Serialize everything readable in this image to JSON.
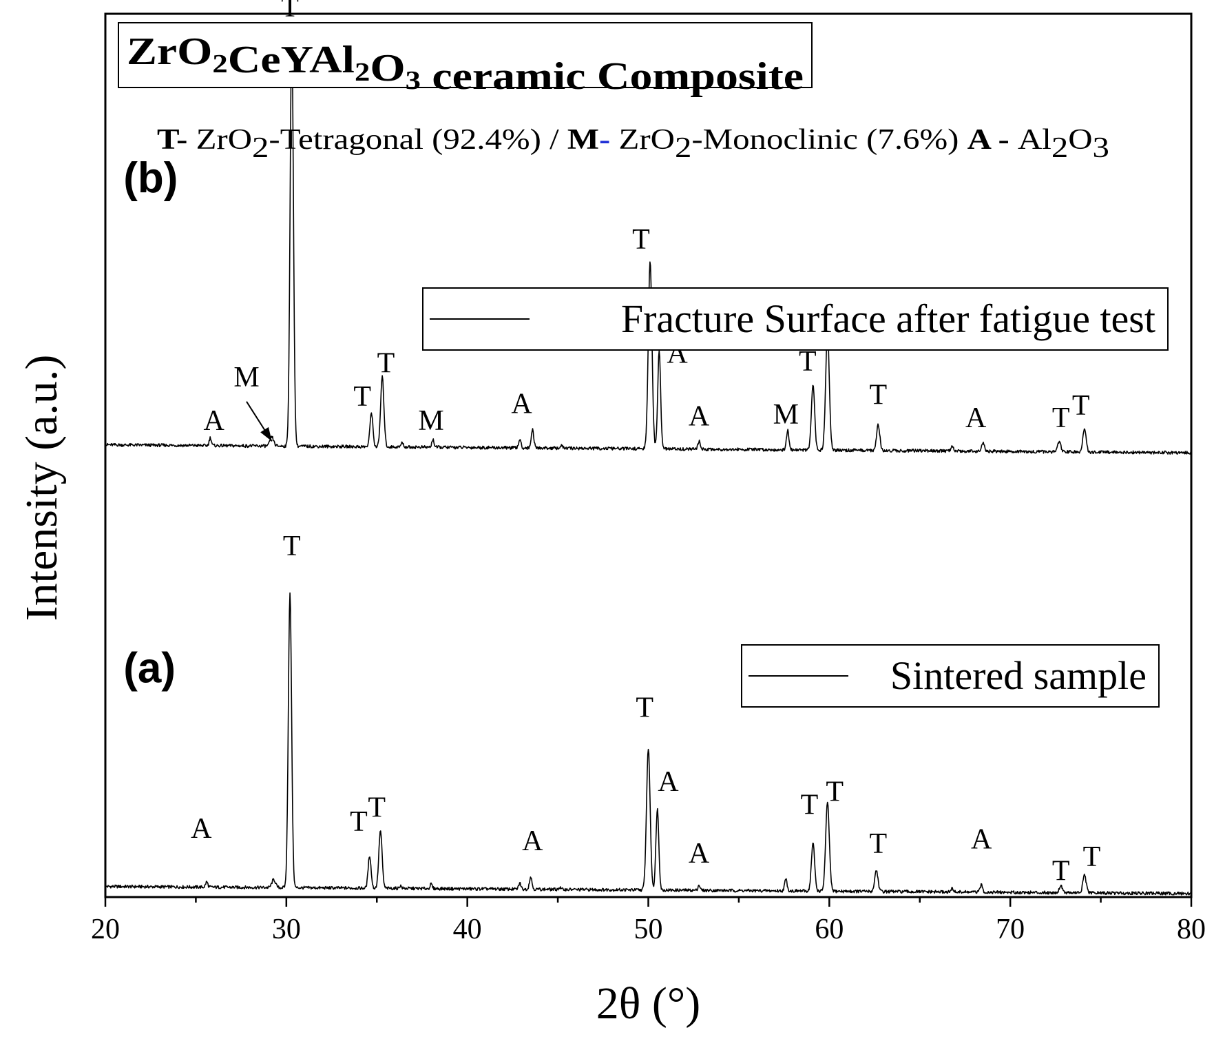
{
  "chart_data": {
    "type": "line",
    "title": {
      "parts": [
        {
          "text": "ZrO",
          "sub": false
        },
        {
          "text": "2",
          "sub": true
        },
        {
          "text": "CeYAl",
          "sub": false
        },
        {
          "text": "2",
          "sub": true
        },
        {
          "text": "O",
          "sub": false
        },
        {
          "text": "3",
          "sub": true
        },
        {
          "text": " ceramic Composite",
          "sub": false
        }
      ]
    },
    "phase_legend": {
      "parts": [
        {
          "text": "T-",
          "style": "bold"
        },
        {
          "text": "  ZrO",
          "style": "normal"
        },
        {
          "text": "2",
          "style": "sub"
        },
        {
          "text": "-Tetragonal (92.4%) / ",
          "style": "normal"
        },
        {
          "text": "M",
          "style": "bold"
        },
        {
          "text": "-",
          "style": "bold-blue"
        },
        {
          "text": "  ZrO",
          "style": "normal"
        },
        {
          "text": "2",
          "style": "sub"
        },
        {
          "text": "-Monoclinic (7.6%)  ",
          "style": "normal"
        },
        {
          "text": "A - ",
          "style": "bold"
        },
        {
          "text": "Al",
          "style": "normal"
        },
        {
          "text": "2",
          "style": "sub"
        },
        {
          "text": "O",
          "style": "normal"
        },
        {
          "text": "3",
          "style": "sub"
        }
      ]
    },
    "xlabel": "2θ (°)",
    "ylabel": "Intensity  (a.u.)",
    "xlim": [
      20,
      80
    ],
    "ylim": [
      0,
      100
    ],
    "xticks": [
      20,
      30,
      40,
      50,
      60,
      70,
      80
    ],
    "series": [
      {
        "name": "Sintered sample",
        "panel": "(a)",
        "baseline": 1.2,
        "end_baseline": 0.4,
        "peaks": [
          {
            "x": 25.6,
            "h": 0.6,
            "w": 0.06
          },
          {
            "x": 29.3,
            "h": 0.9,
            "w": 0.1
          },
          {
            "x": 30.2,
            "h": 33.3,
            "w": 0.09
          },
          {
            "x": 34.6,
            "h": 3.7,
            "w": 0.08
          },
          {
            "x": 35.2,
            "h": 6.5,
            "w": 0.09
          },
          {
            "x": 36.3,
            "h": 0.3,
            "w": 0.06
          },
          {
            "x": 38.0,
            "h": 0.5,
            "w": 0.06
          },
          {
            "x": 42.9,
            "h": 0.7,
            "w": 0.06
          },
          {
            "x": 43.5,
            "h": 1.4,
            "w": 0.07
          },
          {
            "x": 45.1,
            "h": 0.2,
            "w": 0.06
          },
          {
            "x": 50.0,
            "h": 16.0,
            "w": 0.1
          },
          {
            "x": 50.5,
            "h": 9.2,
            "w": 0.08
          },
          {
            "x": 52.8,
            "h": 0.6,
            "w": 0.06
          },
          {
            "x": 57.6,
            "h": 1.3,
            "w": 0.07
          },
          {
            "x": 59.1,
            "h": 5.4,
            "w": 0.09
          },
          {
            "x": 59.9,
            "h": 10.0,
            "w": 0.1
          },
          {
            "x": 62.6,
            "h": 2.4,
            "w": 0.09
          },
          {
            "x": 66.8,
            "h": 0.4,
            "w": 0.06
          },
          {
            "x": 68.4,
            "h": 0.8,
            "w": 0.07
          },
          {
            "x": 72.8,
            "h": 0.8,
            "w": 0.09
          },
          {
            "x": 74.1,
            "h": 2.0,
            "w": 0.09
          }
        ],
        "annotations": [
          {
            "label": "A",
            "x": 25.3,
            "y": 6.7
          },
          {
            "label": "T",
            "x": 30.3,
            "y": 38.7
          },
          {
            "label": "T",
            "x": 34.0,
            "y": 7.5
          },
          {
            "label": "T",
            "x": 35.0,
            "y": 9.1
          },
          {
            "label": "A",
            "x": 43.6,
            "y": 5.3
          },
          {
            "label": "T",
            "x": 49.8,
            "y": 20.4
          },
          {
            "label": "A",
            "x": 51.1,
            "y": 12.0
          },
          {
            "label": "A",
            "x": 52.8,
            "y": 3.9
          },
          {
            "label": "T",
            "x": 58.9,
            "y": 9.4
          },
          {
            "label": "T",
            "x": 60.3,
            "y": 10.9
          },
          {
            "label": "T",
            "x": 62.7,
            "y": 5.0
          },
          {
            "label": "A",
            "x": 68.4,
            "y": 5.5
          },
          {
            "label": "T",
            "x": 72.8,
            "y": 1.9
          },
          {
            "label": "T",
            "x": 74.5,
            "y": 3.5
          }
        ]
      },
      {
        "name": "Fracture Surface after fatigue test",
        "panel": "(b)",
        "baseline": 51.2,
        "end_baseline": 50.3,
        "peaks": [
          {
            "x": 25.8,
            "h": 0.9,
            "w": 0.06
          },
          {
            "x": 29.2,
            "h": 1.0,
            "w": 0.1
          },
          {
            "x": 30.3,
            "h": 47.0,
            "w": 0.09
          },
          {
            "x": 34.7,
            "h": 3.9,
            "w": 0.08
          },
          {
            "x": 35.3,
            "h": 7.9,
            "w": 0.09
          },
          {
            "x": 36.4,
            "h": 0.5,
            "w": 0.06
          },
          {
            "x": 38.1,
            "h": 0.9,
            "w": 0.06
          },
          {
            "x": 42.9,
            "h": 1.0,
            "w": 0.06
          },
          {
            "x": 43.6,
            "h": 2.1,
            "w": 0.07
          },
          {
            "x": 45.2,
            "h": 0.3,
            "w": 0.06
          },
          {
            "x": 50.1,
            "h": 21.3,
            "w": 0.1
          },
          {
            "x": 50.6,
            "h": 11.0,
            "w": 0.08
          },
          {
            "x": 52.8,
            "h": 0.9,
            "w": 0.06
          },
          {
            "x": 57.7,
            "h": 2.2,
            "w": 0.07
          },
          {
            "x": 59.1,
            "h": 7.3,
            "w": 0.09
          },
          {
            "x": 59.9,
            "h": 13.4,
            "w": 0.1
          },
          {
            "x": 62.7,
            "h": 2.9,
            "w": 0.09
          },
          {
            "x": 66.8,
            "h": 0.5,
            "w": 0.06
          },
          {
            "x": 68.5,
            "h": 1.0,
            "w": 0.07
          },
          {
            "x": 72.7,
            "h": 1.1,
            "w": 0.09
          },
          {
            "x": 74.1,
            "h": 2.5,
            "w": 0.09
          }
        ],
        "annotations": [
          {
            "label": "A",
            "x": 26.0,
            "y": 52.9
          },
          {
            "label": "M",
            "x": 27.8,
            "y": 57.8
          },
          {
            "label": "T",
            "x": 30.2,
            "y": 99.7
          },
          {
            "label": "T",
            "x": 34.2,
            "y": 55.6
          },
          {
            "label": "T",
            "x": 35.5,
            "y": 59.4
          },
          {
            "label": "M",
            "x": 38.0,
            "y": 52.9
          },
          {
            "label": "A",
            "x": 43.0,
            "y": 54.8
          },
          {
            "label": "T",
            "x": 49.6,
            "y": 73.4
          },
          {
            "label": "A",
            "x": 51.6,
            "y": 60.5
          },
          {
            "label": "A",
            "x": 52.8,
            "y": 53.4
          },
          {
            "label": "M",
            "x": 57.6,
            "y": 53.6
          },
          {
            "label": "T",
            "x": 58.8,
            "y": 59.6
          },
          {
            "label": "T",
            "x": 60.3,
            "y": 64.4
          },
          {
            "label": "T",
            "x": 62.7,
            "y": 55.8
          },
          {
            "label": "A",
            "x": 68.1,
            "y": 53.2
          },
          {
            "label": "T",
            "x": 72.8,
            "y": 53.2
          },
          {
            "label": "T",
            "x": 73.9,
            "y": 54.6
          }
        ],
        "arrow": {
          "from": [
            27.8,
            56.1
          ],
          "to": [
            29.2,
            51.6
          ]
        }
      }
    ],
    "panel_labels": [
      {
        "text": "(b)",
        "x": 21.0,
        "y": 79.8
      },
      {
        "text": "(a)",
        "x": 21.0,
        "y": 24.3
      }
    ],
    "grid": false,
    "legend_placement": "inside-right, one box per panel"
  }
}
